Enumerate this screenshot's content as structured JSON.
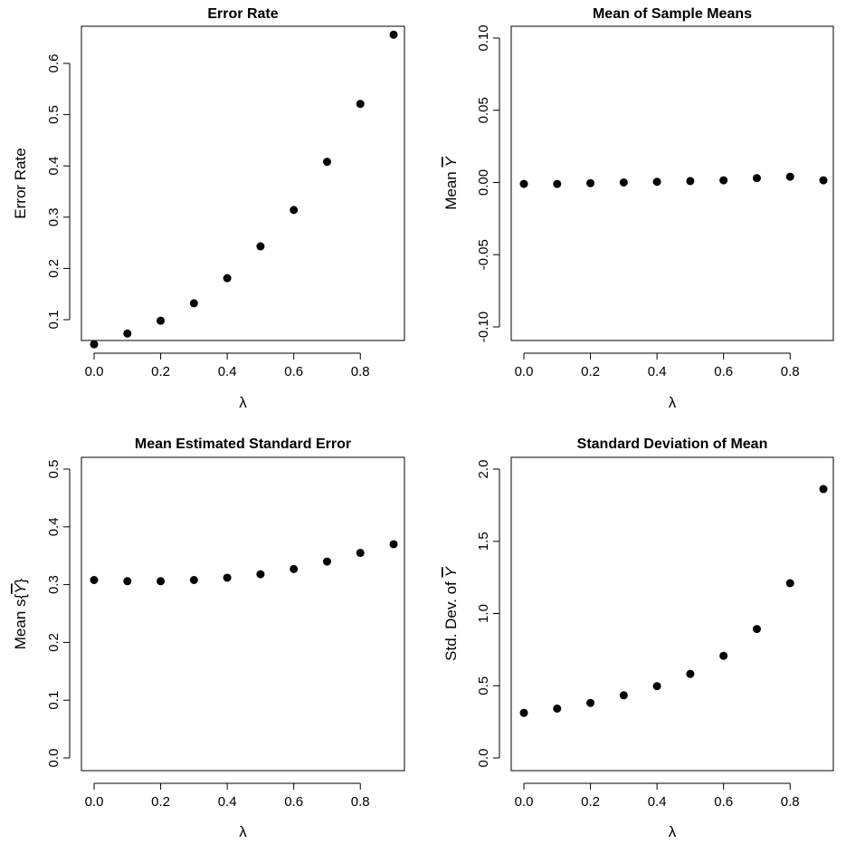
{
  "chart_data": [
    {
      "type": "scatter",
      "title": "Error Rate",
      "xlabel": "λ",
      "ylabel": "Error Rate",
      "xlim": [
        0,
        0.9
      ],
      "ylim": [
        0.05,
        0.656
      ],
      "xticks": [
        0,
        0.2,
        0.4,
        0.6,
        0.8
      ],
      "xtick_labels": [
        "0.0",
        "0.2",
        "0.4",
        "0.6",
        "0.8"
      ],
      "yticks": [
        0.1,
        0.2,
        0.3,
        0.4,
        0.5,
        0.6
      ],
      "ytick_labels": [
        "0.1",
        "0.2",
        "0.3",
        "0.4",
        "0.5",
        "0.6"
      ],
      "grid": false,
      "x": [
        0.0,
        0.1,
        0.2,
        0.3,
        0.4,
        0.5,
        0.6,
        0.7,
        0.8,
        0.9
      ],
      "y": [
        0.052,
        0.073,
        0.098,
        0.132,
        0.181,
        0.243,
        0.314,
        0.408,
        0.521,
        0.656
      ]
    },
    {
      "type": "scatter",
      "title": "Mean of Sample Means",
      "xlabel": "λ",
      "ylabel_prefix": "Mean ",
      "ylabel_symbol": "Y",
      "ylabel_suffix": "",
      "xlim": [
        0,
        0.9
      ],
      "ylim": [
        -0.1,
        0.1
      ],
      "xticks": [
        0,
        0.2,
        0.4,
        0.6,
        0.8
      ],
      "xtick_labels": [
        "0.0",
        "0.2",
        "0.4",
        "0.6",
        "0.8"
      ],
      "yticks": [
        -0.1,
        -0.05,
        0,
        0.05,
        0.1
      ],
      "ytick_labels": [
        "-0.10",
        "-0.05",
        "0.00",
        "0.05",
        "0.10"
      ],
      "grid": false,
      "x": [
        0.0,
        0.1,
        0.2,
        0.3,
        0.4,
        0.5,
        0.6,
        0.7,
        0.8,
        0.9
      ],
      "y": [
        -0.001,
        -0.001,
        -0.0005,
        0.0,
        0.0005,
        0.001,
        0.0015,
        0.003,
        0.004,
        0.0015
      ]
    },
    {
      "type": "scatter",
      "title": "Mean Estimated Standard Error",
      "xlabel": "λ",
      "ylabel_prefix": "Mean s{",
      "ylabel_symbol": "Y",
      "ylabel_suffix": "}",
      "xlim": [
        0,
        0.9
      ],
      "ylim": [
        0,
        0.5
      ],
      "xticks": [
        0,
        0.2,
        0.4,
        0.6,
        0.8
      ],
      "xtick_labels": [
        "0.0",
        "0.2",
        "0.4",
        "0.6",
        "0.8"
      ],
      "yticks": [
        0,
        0.1,
        0.2,
        0.3,
        0.4,
        0.5
      ],
      "ytick_labels": [
        "0.0",
        "0.1",
        "0.2",
        "0.3",
        "0.4",
        "0.5"
      ],
      "grid": false,
      "x": [
        0.0,
        0.1,
        0.2,
        0.3,
        0.4,
        0.5,
        0.6,
        0.7,
        0.8,
        0.9
      ],
      "y": [
        0.308,
        0.306,
        0.306,
        0.308,
        0.312,
        0.318,
        0.327,
        0.34,
        0.355,
        0.37
      ]
    },
    {
      "type": "scatter",
      "title": "Standard Deviation of Mean",
      "xlabel": "λ",
      "ylabel_prefix": "Std. Dev. of ",
      "ylabel_symbol": "Y",
      "ylabel_suffix": "",
      "xlim": [
        0,
        0.9
      ],
      "ylim": [
        0,
        2.0
      ],
      "xticks": [
        0,
        0.2,
        0.4,
        0.6,
        0.8
      ],
      "xtick_labels": [
        "0.0",
        "0.2",
        "0.4",
        "0.6",
        "0.8"
      ],
      "yticks": [
        0,
        0.5,
        1.0,
        1.5,
        2.0
      ],
      "ytick_labels": [
        "0.0",
        "0.5",
        "1.0",
        "1.5",
        "2.0"
      ],
      "grid": false,
      "x": [
        0.0,
        0.1,
        0.2,
        0.3,
        0.4,
        0.5,
        0.6,
        0.7,
        0.8,
        0.9
      ],
      "y": [
        0.312,
        0.342,
        0.381,
        0.434,
        0.497,
        0.582,
        0.707,
        0.893,
        1.21,
        1.862
      ]
    }
  ]
}
